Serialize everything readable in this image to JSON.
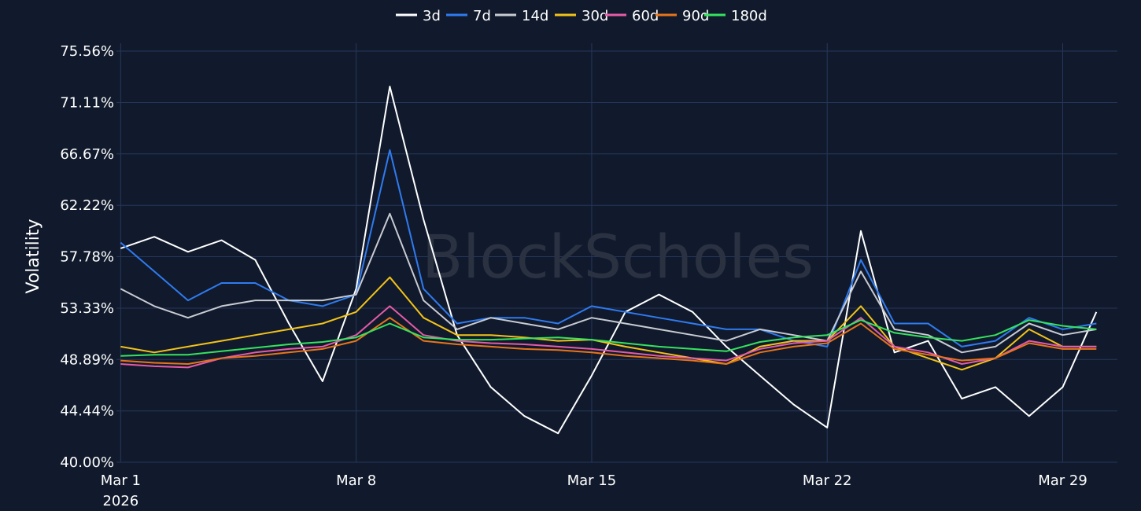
{
  "chart_data": {
    "type": "line",
    "title": "",
    "xlabel": "",
    "ylabel": "Volatility",
    "watermark": "BlockScholes",
    "legend_position": "top-center",
    "grid": true,
    "colors": {
      "background": "#111a2c",
      "grid": "#26375a"
    },
    "x_range": [
      "2026-02-28T21:00",
      "2026-03-30T15:00"
    ],
    "ylim": [
      40.0,
      75.56
    ],
    "y_ticks": [
      "40.00%",
      "44.44%",
      "48.89%",
      "53.33%",
      "57.78%",
      "62.22%",
      "66.67%",
      "71.11%",
      "75.56%"
    ],
    "y_tick_values": [
      40.0,
      44.44,
      48.89,
      53.33,
      57.78,
      62.22,
      66.67,
      71.11,
      75.56
    ],
    "x_ticks": [
      {
        "date": "2026-03-01",
        "label": "Mar 1",
        "sublabel": "2026"
      },
      {
        "date": "2026-03-08",
        "label": "Mar 8",
        "sublabel": ""
      },
      {
        "date": "2026-03-15",
        "label": "Mar 15",
        "sublabel": ""
      },
      {
        "date": "2026-03-22",
        "label": "Mar 22",
        "sublabel": ""
      },
      {
        "date": "2026-03-29",
        "label": "Mar 29",
        "sublabel": ""
      }
    ],
    "x": [
      "2026-03-01",
      "2026-03-02",
      "2026-03-03",
      "2026-03-04",
      "2026-03-05",
      "2026-03-06",
      "2026-03-07",
      "2026-03-08",
      "2026-03-09",
      "2026-03-10",
      "2026-03-11",
      "2026-03-12",
      "2026-03-13",
      "2026-03-14",
      "2026-03-15",
      "2026-03-16",
      "2026-03-17",
      "2026-03-18",
      "2026-03-19",
      "2026-03-20",
      "2026-03-21",
      "2026-03-22",
      "2026-03-23",
      "2026-03-24",
      "2026-03-25",
      "2026-03-26",
      "2026-03-27",
      "2026-03-28",
      "2026-03-29",
      "2026-03-30"
    ],
    "series": [
      {
        "name": "3d",
        "color": "#ffffff",
        "values": [
          58.5,
          59.5,
          58.2,
          59.2,
          57.5,
          52.0,
          47.0,
          55.0,
          72.5,
          61.0,
          51.0,
          46.5,
          44.0,
          42.5,
          47.5,
          53.0,
          54.5,
          53.0,
          50.0,
          47.5,
          45.0,
          43.0,
          60.0,
          49.5,
          50.5,
          45.5,
          46.5,
          44.0,
          46.5,
          53.0
        ]
      },
      {
        "name": "7d",
        "color": "#2f7bf0",
        "values": [
          59.0,
          56.5,
          54.0,
          55.5,
          55.5,
          54.0,
          53.5,
          54.5,
          67.0,
          55.0,
          52.0,
          52.5,
          52.5,
          52.0,
          53.5,
          53.0,
          52.5,
          52.0,
          51.5,
          51.5,
          50.5,
          50.0,
          57.5,
          52.0,
          52.0,
          50.0,
          50.5,
          52.5,
          51.5,
          52.0
        ]
      },
      {
        "name": "14d",
        "color": "#c8cbd2",
        "values": [
          55.0,
          53.5,
          52.5,
          53.5,
          54.0,
          54.0,
          54.0,
          54.5,
          61.5,
          54.0,
          51.5,
          52.5,
          52.0,
          51.5,
          52.5,
          52.0,
          51.5,
          51.0,
          50.5,
          51.5,
          51.0,
          50.5,
          56.5,
          51.5,
          51.0,
          49.5,
          50.0,
          52.0,
          51.0,
          51.5
        ]
      },
      {
        "name": "30d",
        "color": "#f2c318",
        "values": [
          50.0,
          49.5,
          50.0,
          50.5,
          51.0,
          51.5,
          52.0,
          53.0,
          56.0,
          52.5,
          51.0,
          51.0,
          50.8,
          50.5,
          50.6,
          50.0,
          49.5,
          49.0,
          48.5,
          50.0,
          50.5,
          50.5,
          53.5,
          50.0,
          49.0,
          48.0,
          49.0,
          51.5,
          50.0,
          50.0
        ]
      },
      {
        "name": "60d",
        "color": "#e55ba8",
        "values": [
          48.5,
          48.3,
          48.2,
          49.0,
          49.5,
          49.8,
          50.0,
          51.0,
          53.5,
          51.0,
          50.5,
          50.3,
          50.2,
          50.0,
          49.8,
          49.5,
          49.2,
          49.0,
          48.8,
          49.8,
          50.3,
          50.5,
          52.5,
          50.0,
          49.5,
          48.5,
          49.0,
          50.5,
          50.0,
          50.0
        ]
      },
      {
        "name": "90d",
        "color": "#e8751a",
        "values": [
          48.8,
          48.6,
          48.5,
          49.0,
          49.2,
          49.5,
          49.8,
          50.5,
          52.5,
          50.5,
          50.2,
          50.0,
          49.8,
          49.7,
          49.5,
          49.2,
          49.0,
          48.8,
          48.5,
          49.5,
          50.0,
          50.3,
          52.0,
          49.8,
          49.3,
          48.8,
          49.0,
          50.3,
          49.8,
          49.8
        ]
      },
      {
        "name": "180d",
        "color": "#35e35e",
        "values": [
          49.2,
          49.3,
          49.3,
          49.6,
          49.9,
          50.2,
          50.4,
          50.8,
          52.0,
          50.8,
          50.6,
          50.6,
          50.7,
          50.8,
          50.6,
          50.3,
          50.0,
          49.8,
          49.6,
          50.4,
          50.8,
          51.0,
          52.3,
          51.2,
          50.8,
          50.5,
          51.0,
          52.3,
          51.8,
          51.5
        ]
      }
    ]
  }
}
